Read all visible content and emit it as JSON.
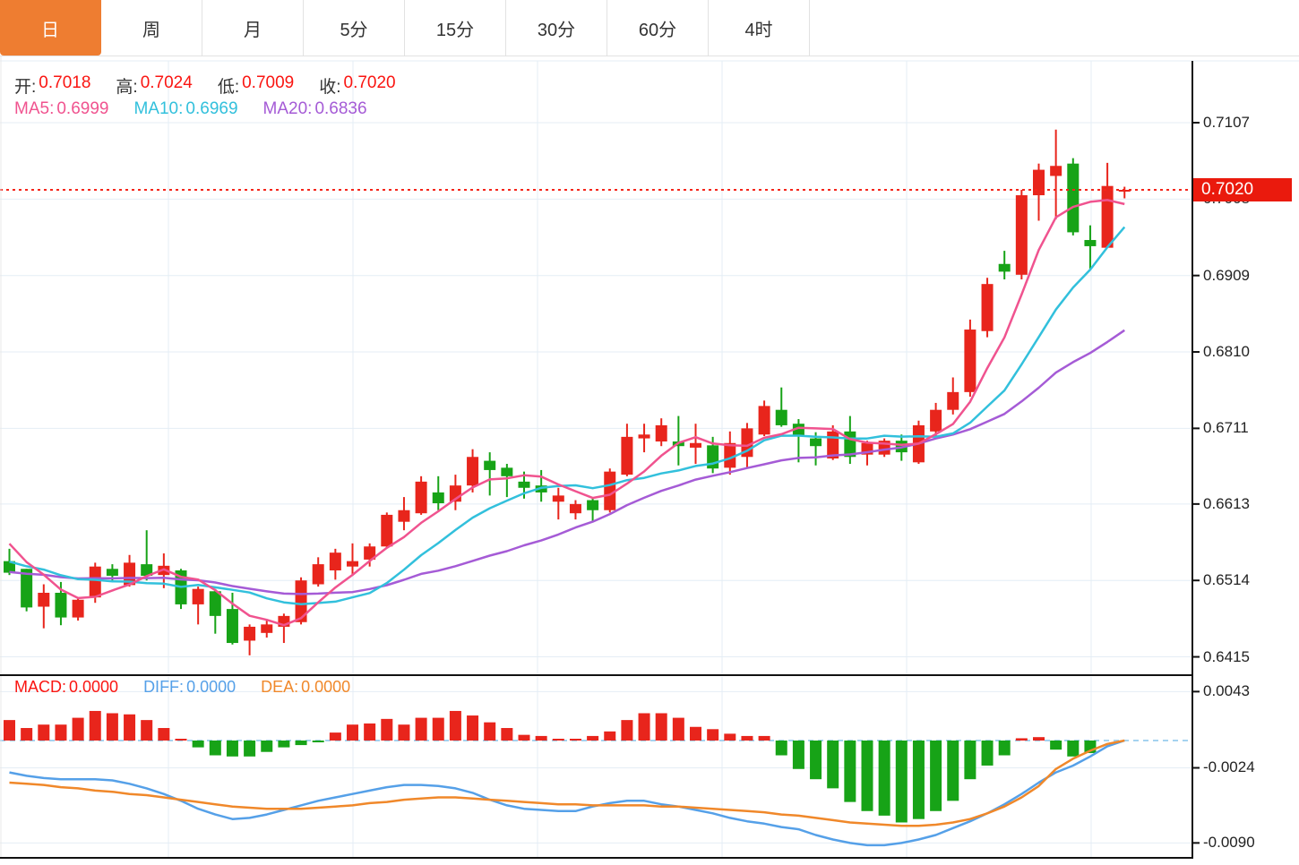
{
  "tabs": [
    {
      "label": "日",
      "active": true
    },
    {
      "label": "周",
      "active": false
    },
    {
      "label": "月",
      "active": false
    },
    {
      "label": "5分",
      "active": false
    },
    {
      "label": "15分",
      "active": false
    },
    {
      "label": "30分",
      "active": false
    },
    {
      "label": "60分",
      "active": false
    },
    {
      "label": "4时",
      "active": false
    }
  ],
  "quote_bar": {
    "open_label": "开:",
    "open_value": "0.7018",
    "high_label": "高:",
    "high_value": "0.7024",
    "low_label": "低:",
    "low_value": "0.7009",
    "close_label": "收:",
    "close_value": "0.7020"
  },
  "ma_bar": {
    "ma5_label": "MA5:",
    "ma5_value": "0.6999",
    "ma10_label": "MA10:",
    "ma10_value": "0.6969",
    "ma20_label": "MA20:",
    "ma20_value": "0.6836"
  },
  "macd_bar": {
    "macd_label": "MACD:",
    "macd_value": "0.0000",
    "diff_label": "DIFF:",
    "diff_value": "0.0000",
    "dea_label": "DEA:",
    "dea_value": "0.0000"
  },
  "last_price_badge": "0.7020",
  "colors": {
    "up": "#e8251c",
    "down": "#17a317",
    "ma5": "#f0538f",
    "ma10": "#32c0dc",
    "ma20": "#a55bd6",
    "diff": "#55a0e8",
    "dea": "#f0882a",
    "grid": "#e4edf5",
    "zero_dash": "#a5d3f0",
    "price_line": "#f5251a",
    "badge_bg": "#ea1a0d",
    "badge_text": "#ffffff",
    "axis_text": "#222222",
    "label_dark": "#333333",
    "value_red": "#fa1511",
    "tab_active_bg": "#ee7d31",
    "panel_border": "#111111",
    "light_border": "#e8e8e8"
  },
  "chart_data": [
    {
      "type": "candlestick",
      "panel": "price",
      "legend": [
        "MA5",
        "MA10",
        "MA20"
      ],
      "y_axis_ticks": [
        "0.7107",
        "0.7008",
        "0.6909",
        "0.6810",
        "0.6711",
        "0.6613",
        "0.6514",
        "0.6415"
      ],
      "y_range_top": 0.7187,
      "y_range_bottom": 0.6392,
      "last_price": 0.702,
      "ma_periods": [
        5,
        10,
        20
      ],
      "ma_history_seed": {
        "5": [
          0.6598,
          0.658,
          0.6562,
          0.6544
        ],
        "10": [
          0.654,
          0.654,
          0.654,
          0.654,
          0.654,
          0.654,
          0.654,
          0.654,
          0.654
        ],
        "20": [
          0.6525,
          0.6525,
          0.6525,
          0.6525,
          0.6525,
          0.6525,
          0.6525,
          0.6525,
          0.6525,
          0.6525,
          0.6525,
          0.6525,
          0.6525,
          0.6525,
          0.6525,
          0.6525,
          0.6525,
          0.6525,
          0.6525
        ]
      },
      "candles_ohlc": [
        [
          0.6539,
          0.6555,
          0.6521,
          0.6524
        ],
        [
          0.6529,
          0.6529,
          0.6474,
          0.6479
        ],
        [
          0.648,
          0.6509,
          0.6452,
          0.6498
        ],
        [
          0.6498,
          0.6512,
          0.6456,
          0.6466
        ],
        [
          0.6466,
          0.6491,
          0.6462,
          0.6489
        ],
        [
          0.6492,
          0.6537,
          0.6485,
          0.6532
        ],
        [
          0.6529,
          0.6535,
          0.6512,
          0.652
        ],
        [
          0.6508,
          0.6547,
          0.6506,
          0.6537
        ],
        [
          0.6535,
          0.6579,
          0.6514,
          0.652
        ],
        [
          0.6521,
          0.6549,
          0.6504,
          0.6533
        ],
        [
          0.6527,
          0.6529,
          0.6477,
          0.6483
        ],
        [
          0.6483,
          0.6506,
          0.6457,
          0.6503
        ],
        [
          0.65,
          0.6503,
          0.6445,
          0.6468
        ],
        [
          0.6477,
          0.6498,
          0.6431,
          0.6433
        ],
        [
          0.6436,
          0.6457,
          0.6417,
          0.6454
        ],
        [
          0.6446,
          0.6462,
          0.644,
          0.6457
        ],
        [
          0.6454,
          0.6471,
          0.6433,
          0.6468
        ],
        [
          0.646,
          0.6518,
          0.6457,
          0.6514
        ],
        [
          0.6509,
          0.6544,
          0.6506,
          0.6535
        ],
        [
          0.6527,
          0.6555,
          0.6515,
          0.655
        ],
        [
          0.6532,
          0.6562,
          0.652,
          0.6539
        ],
        [
          0.6541,
          0.6562,
          0.6532,
          0.6558
        ],
        [
          0.6558,
          0.6602,
          0.6556,
          0.6599
        ],
        [
          0.659,
          0.6622,
          0.6579,
          0.6605
        ],
        [
          0.6601,
          0.6649,
          0.6599,
          0.6642
        ],
        [
          0.6628,
          0.6649,
          0.6605,
          0.6614
        ],
        [
          0.6616,
          0.6651,
          0.6605,
          0.6637
        ],
        [
          0.6637,
          0.6684,
          0.6628,
          0.6674
        ],
        [
          0.6669,
          0.668,
          0.6624,
          0.6657
        ],
        [
          0.666,
          0.6665,
          0.6622,
          0.6649
        ],
        [
          0.6642,
          0.6655,
          0.662,
          0.6634
        ],
        [
          0.6637,
          0.6657,
          0.6616,
          0.6628
        ],
        [
          0.6616,
          0.6634,
          0.6593,
          0.6624
        ],
        [
          0.6601,
          0.6618,
          0.6593,
          0.6613
        ],
        [
          0.6618,
          0.6622,
          0.6591,
          0.6605
        ],
        [
          0.6605,
          0.6659,
          0.6602,
          0.6655
        ],
        [
          0.6651,
          0.6717,
          0.6649,
          0.67
        ],
        [
          0.6698,
          0.6717,
          0.668,
          0.6703
        ],
        [
          0.6694,
          0.6724,
          0.6688,
          0.6715
        ],
        [
          0.6694,
          0.6727,
          0.6663,
          0.6688
        ],
        [
          0.6686,
          0.6717,
          0.6665,
          0.6692
        ],
        [
          0.6689,
          0.67,
          0.6653,
          0.6659
        ],
        [
          0.666,
          0.6707,
          0.6651,
          0.6692
        ],
        [
          0.6674,
          0.6718,
          0.666,
          0.6711
        ],
        [
          0.6703,
          0.6747,
          0.6701,
          0.674
        ],
        [
          0.6735,
          0.6764,
          0.6713,
          0.6715
        ],
        [
          0.6717,
          0.6723,
          0.6667,
          0.6701
        ],
        [
          0.6698,
          0.6706,
          0.6663,
          0.6688
        ],
        [
          0.6672,
          0.6715,
          0.667,
          0.6707
        ],
        [
          0.6707,
          0.6727,
          0.6665,
          0.6674
        ],
        [
          0.6677,
          0.6695,
          0.6663,
          0.6692
        ],
        [
          0.6677,
          0.6698,
          0.6674,
          0.6695
        ],
        [
          0.6695,
          0.6703,
          0.6669,
          0.668
        ],
        [
          0.6667,
          0.6721,
          0.6665,
          0.6715
        ],
        [
          0.6707,
          0.6744,
          0.6701,
          0.6735
        ],
        [
          0.6735,
          0.6777,
          0.6729,
          0.6758
        ],
        [
          0.6758,
          0.6852,
          0.6752,
          0.6839
        ],
        [
          0.6837,
          0.6906,
          0.6829,
          0.6898
        ],
        [
          0.6924,
          0.6941,
          0.6904,
          0.6914
        ],
        [
          0.691,
          0.702,
          0.6904,
          0.7013
        ],
        [
          0.7013,
          0.7054,
          0.698,
          0.7046
        ],
        [
          0.7038,
          0.7098,
          0.6982,
          0.7051
        ],
        [
          0.7054,
          0.7061,
          0.6961,
          0.6965
        ],
        [
          0.6955,
          0.6974,
          0.6916,
          0.6947
        ],
        [
          0.6945,
          0.7055,
          0.6945,
          0.7025
        ],
        [
          0.7018,
          0.7024,
          0.7009,
          0.702
        ]
      ]
    },
    {
      "type": "bar",
      "panel": "macd",
      "legend": [
        "MACD",
        "DIFF",
        "DEA"
      ],
      "y_axis_ticks": [
        "0.0043",
        "-0.0024",
        "-0.0090"
      ],
      "zero_value": 0,
      "histogram": [
        0.0018,
        0.0011,
        0.0014,
        0.0014,
        0.002,
        0.0026,
        0.0024,
        0.0023,
        0.0018,
        0.0011,
        0.0001,
        -0.0006,
        -0.0013,
        -0.0014,
        -0.0014,
        -0.001,
        -0.0006,
        -0.0004,
        -0.0001,
        0.0007,
        0.0014,
        0.0015,
        0.0019,
        0.0014,
        0.002,
        0.002,
        0.0026,
        0.0022,
        0.0016,
        0.0011,
        0.0005,
        0.0004,
        0.0001,
        0.0001,
        0.0004,
        0.0008,
        0.0018,
        0.0024,
        0.0024,
        0.002,
        0.0012,
        0.001,
        0.0006,
        0.0004,
        0.0004,
        -0.0013,
        -0.0025,
        -0.0034,
        -0.0042,
        -0.0054,
        -0.0062,
        -0.0066,
        -0.0072,
        -0.0069,
        -0.0062,
        -0.0053,
        -0.0034,
        -0.0022,
        -0.0013,
        0.0002,
        0.0003,
        -0.0008,
        -0.0014,
        -0.0011,
        0.0,
        0.0
      ],
      "diff_line": [
        -0.0028,
        -0.0031,
        -0.0033,
        -0.0034,
        -0.0034,
        -0.0034,
        -0.0035,
        -0.0038,
        -0.0042,
        -0.0047,
        -0.0053,
        -0.006,
        -0.0065,
        -0.0069,
        -0.0068,
        -0.0065,
        -0.0061,
        -0.0057,
        -0.0053,
        -0.005,
        -0.0047,
        -0.0044,
        -0.0041,
        -0.0039,
        -0.0039,
        -0.004,
        -0.0042,
        -0.0046,
        -0.0052,
        -0.0057,
        -0.006,
        -0.0061,
        -0.0062,
        -0.0062,
        -0.0058,
        -0.0055,
        -0.0053,
        -0.0053,
        -0.0056,
        -0.0058,
        -0.0061,
        -0.0064,
        -0.0068,
        -0.0071,
        -0.0073,
        -0.0076,
        -0.0078,
        -0.0083,
        -0.0087,
        -0.009,
        -0.0092,
        -0.0092,
        -0.009,
        -0.0087,
        -0.0083,
        -0.0077,
        -0.0071,
        -0.0064,
        -0.0056,
        -0.0047,
        -0.0037,
        -0.0028,
        -0.0022,
        -0.0014,
        -0.0005,
        0.0
      ],
      "dea_line": [
        -0.0037,
        -0.0038,
        -0.0039,
        -0.0041,
        -0.0042,
        -0.0044,
        -0.0045,
        -0.0047,
        -0.0048,
        -0.005,
        -0.0052,
        -0.0054,
        -0.0056,
        -0.0058,
        -0.0059,
        -0.006,
        -0.006,
        -0.006,
        -0.0059,
        -0.0058,
        -0.0057,
        -0.0055,
        -0.0054,
        -0.0052,
        -0.0051,
        -0.005,
        -0.005,
        -0.0051,
        -0.0052,
        -0.0053,
        -0.0054,
        -0.0055,
        -0.0056,
        -0.0056,
        -0.0057,
        -0.0057,
        -0.0057,
        -0.0057,
        -0.0058,
        -0.0058,
        -0.0059,
        -0.006,
        -0.0061,
        -0.0062,
        -0.0063,
        -0.0065,
        -0.0066,
        -0.0068,
        -0.007,
        -0.0072,
        -0.0073,
        -0.0074,
        -0.0075,
        -0.0075,
        -0.0074,
        -0.0072,
        -0.0069,
        -0.0064,
        -0.0058,
        -0.005,
        -0.004,
        -0.0025,
        -0.0016,
        -0.0009,
        -0.0003,
        0.0
      ]
    }
  ]
}
